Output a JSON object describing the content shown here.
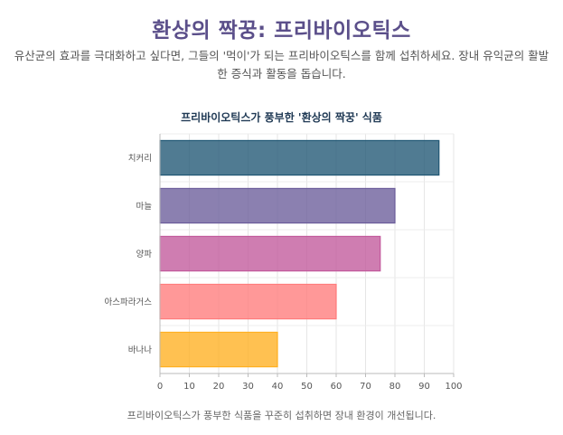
{
  "header": {
    "title": "환상의 짝꿍: 프리바이오틱스",
    "intro": "유산균의 효과를 극대화하고 싶다면, 그들의 '먹이'가 되는 프리바이오틱스를 함께 섭취하세요. 장내 유익균의 활발한 증식과 활동을 돕습니다."
  },
  "chart_data": {
    "type": "bar",
    "orientation": "horizontal",
    "title": "프리바이오틱스가 풍부한 '환상의 짝꿍' 식품",
    "categories": [
      "치커리",
      "마늘",
      "양파",
      "아스파라거스",
      "바나나"
    ],
    "values": [
      95,
      80,
      75,
      60,
      40
    ],
    "colors": [
      "#1f5673",
      "#6a5c9a",
      "#c2589b",
      "#ff7b7b",
      "#ffb020"
    ],
    "xlim": [
      0,
      100
    ],
    "xticks": [
      "0",
      "10",
      "20",
      "30",
      "40",
      "50",
      "60",
      "70",
      "80",
      "90",
      "100"
    ],
    "grid": true
  },
  "footer": {
    "caption": "프리바이오틱스가 풍부한 식품을 꾸준히 섭취하면 장내 환경이 개선됩니다."
  }
}
